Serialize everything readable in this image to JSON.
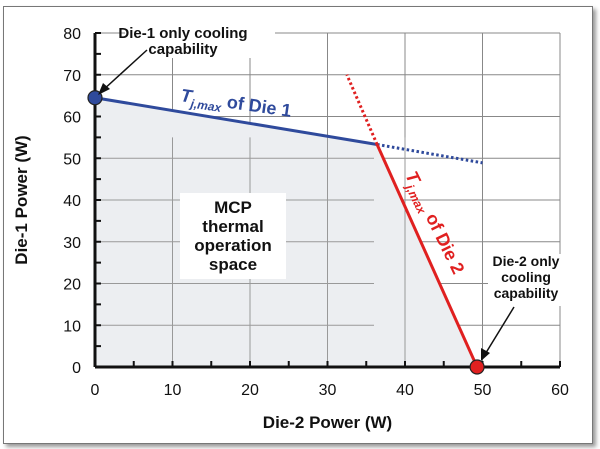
{
  "chart_data": {
    "type": "line",
    "xlabel": "Die-2 Power  (W)",
    "ylabel": "Die-1 Power  (W)",
    "xlim": [
      0,
      60
    ],
    "ylim": [
      0,
      80
    ],
    "xticks": [
      "0",
      "10",
      "20",
      "30",
      "40",
      "50",
      "60"
    ],
    "yticks": [
      "0",
      "10",
      "20",
      "30",
      "40",
      "50",
      "60",
      "70",
      "80"
    ],
    "grid": true,
    "series": [
      {
        "name": "Tj,max of Die 1",
        "label_main": "T",
        "label_sub": "j,max",
        "label_rest": " of Die 1",
        "color": "#2f4a9c",
        "solid": [
          [
            0,
            64.5
          ],
          [
            36.4,
            53.3
          ]
        ],
        "dotted": [
          [
            36.4,
            53.3
          ],
          [
            50,
            48.9
          ]
        ]
      },
      {
        "name": "Tj,max of Die 2",
        "label_main": "T",
        "label_sub": "j,max",
        "label_rest": "  of Die 2",
        "color": "#e02020",
        "solid": [
          [
            49.3,
            0
          ],
          [
            36.4,
            53.3
          ]
        ],
        "dotted": [
          [
            36.4,
            53.3
          ],
          [
            32.5,
            70
          ]
        ]
      }
    ],
    "points": [
      {
        "x": 0,
        "y": 64.5,
        "color": "#2f4a9c"
      },
      {
        "x": 49.3,
        "y": 0,
        "color": "#e02020"
      }
    ],
    "region_fill": "#eceef1",
    "annotations": {
      "die1": [
        "Die-1 only cooling",
        "capability"
      ],
      "die2": [
        "Die-2 only",
        "cooling",
        "capability"
      ],
      "region": [
        "MCP",
        "thermal",
        "operation",
        "space"
      ]
    }
  }
}
